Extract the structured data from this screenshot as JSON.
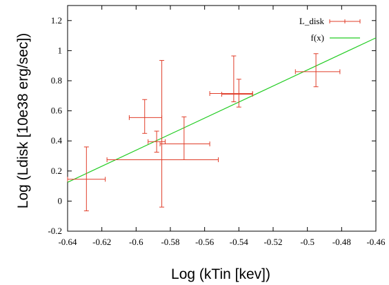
{
  "chart_data": {
    "type": "scatter",
    "title": "",
    "xlabel": "Log (kTin [kev])",
    "ylabel": "Log (Ldisk [10e38 erg/sec])",
    "xlim": [
      -0.64,
      -0.46
    ],
    "ylim": [
      -0.2,
      1.3
    ],
    "xticks": [
      -0.64,
      -0.62,
      -0.6,
      -0.58,
      -0.56,
      -0.54,
      -0.52,
      -0.5,
      -0.48,
      -0.46
    ],
    "xtick_labels": [
      "-0.64",
      "-0.62",
      "-0.6",
      "-0.58",
      "-0.56",
      "-0.54",
      "-0.52",
      "-0.5",
      "-0.48",
      "-0.46"
    ],
    "yticks": [
      -0.2,
      0,
      0.2,
      0.4,
      0.6,
      0.8,
      1,
      1.2
    ],
    "ytick_labels": [
      "-0.2",
      "0",
      "0.2",
      "0.4",
      "0.6",
      "0.8",
      "1",
      "1.2"
    ],
    "grid": false,
    "legend_position": "top-right",
    "series": [
      {
        "name": "L_disk",
        "color": "#e03c28",
        "kind": "points-with-xy-errorbars",
        "points": [
          {
            "x": -0.629,
            "y": 0.145,
            "xerr_low": 0.011,
            "xerr_high": 0.011,
            "yerr_low": 0.21,
            "yerr_high": 0.215
          },
          {
            "x": -0.595,
            "y": 0.555,
            "xerr_low": 0.009,
            "xerr_high": 0.01,
            "yerr_low": 0.105,
            "yerr_high": 0.12
          },
          {
            "x": -0.588,
            "y": 0.395,
            "xerr_low": 0.005,
            "xerr_high": 0.005,
            "yerr_low": 0.07,
            "yerr_high": 0.07
          },
          {
            "x": -0.585,
            "y": 0.275,
            "xerr_low": 0.032,
            "xerr_high": 0.033,
            "yerr_low": 0.315,
            "yerr_high": 0.66
          },
          {
            "x": -0.572,
            "y": 0.38,
            "xerr_low": 0.014,
            "xerr_high": 0.015,
            "yerr_low": 0.105,
            "yerr_high": 0.18
          },
          {
            "x": -0.543,
            "y": 0.715,
            "xerr_low": 0.014,
            "xerr_high": 0.011,
            "yerr_low": 0.055,
            "yerr_high": 0.25
          },
          {
            "x": -0.54,
            "y": 0.71,
            "xerr_low": 0.01,
            "xerr_high": 0.008,
            "yerr_low": 0.085,
            "yerr_high": 0.1
          },
          {
            "x": -0.495,
            "y": 0.86,
            "xerr_low": 0.012,
            "xerr_high": 0.014,
            "yerr_low": 0.1,
            "yerr_high": 0.12
          }
        ]
      },
      {
        "name": "f(x)",
        "color": "#22cc22",
        "kind": "line",
        "x": [
          -0.64,
          -0.46
        ],
        "y": [
          0.125,
          1.085
        ]
      }
    ]
  }
}
